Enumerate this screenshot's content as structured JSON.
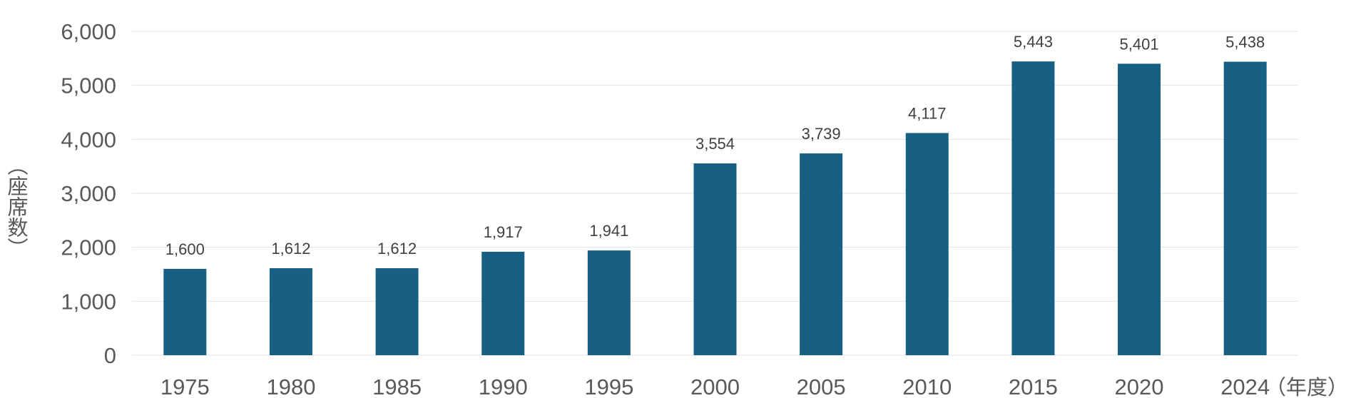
{
  "chart_data": {
    "type": "bar",
    "categories": [
      "1975",
      "1980",
      "1985",
      "1990",
      "1995",
      "2000",
      "2005",
      "2010",
      "2015",
      "2020",
      "2024"
    ],
    "series": [
      {
        "values": [
          1600,
          1612,
          1612,
          1917,
          1941,
          3554,
          3739,
          4117,
          5443,
          5401,
          5438
        ],
        "data_labels": [
          "1,600",
          "1,612",
          "1,612",
          "1,917",
          "1,941",
          "3,554",
          "3,739",
          "4,117",
          "5,443",
          "5,401",
          "5,438"
        ]
      }
    ],
    "yticks": [
      "0",
      "1,000",
      "2,000",
      "3,000",
      "4,000",
      "5,000",
      "6,000"
    ],
    "ylim": [
      0,
      6000
    ],
    "ylabel": "（座席数）",
    "xlabel_unit": "（年度）",
    "grid": true,
    "colors": {
      "bar": "#176084",
      "grid": "#e3e3e3"
    }
  }
}
